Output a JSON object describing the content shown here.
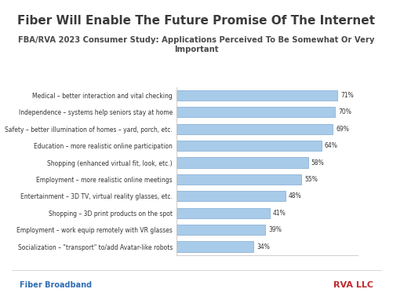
{
  "chart_data": {
    "type": "bar",
    "orientation": "horizontal",
    "title": "Fiber Will Enable The Future Promise Of The Internet",
    "subtitle": "FBA/RVA 2023 Consumer Study: Applications Perceived To Be Somewhat Or Very Important",
    "categories": [
      "Medical – better interaction and vital checking",
      "Independence – systems help seniors stay at home",
      "Safety – better illumination of homes – yard, porch, etc.",
      "Education – more realistic online participation",
      "Shopping (enhanced virtual fit, look, etc.)",
      "Employment – more realistic online meetings",
      "Entertainment – 3D TV, virtual reality glasses, etc.",
      "Shopping – 3D print products on the spot",
      "Employment – work equip remotely with VR glasses",
      "Socialization – \"transport\" to/add Avatar-like robots"
    ],
    "values": [
      71,
      70,
      69,
      64,
      58,
      55,
      48,
      41,
      39,
      34
    ],
    "value_labels": [
      "71%",
      "70%",
      "69%",
      "64%",
      "58%",
      "55%",
      "48%",
      "41%",
      "39%",
      "34%"
    ],
    "data_labels": true,
    "color": "#a8cbea",
    "xlim": [
      0,
      80
    ],
    "tick_labels": "y",
    "grid": false,
    "annotations": [
      "Fiber Broadband",
      "RVA LLC"
    ]
  }
}
